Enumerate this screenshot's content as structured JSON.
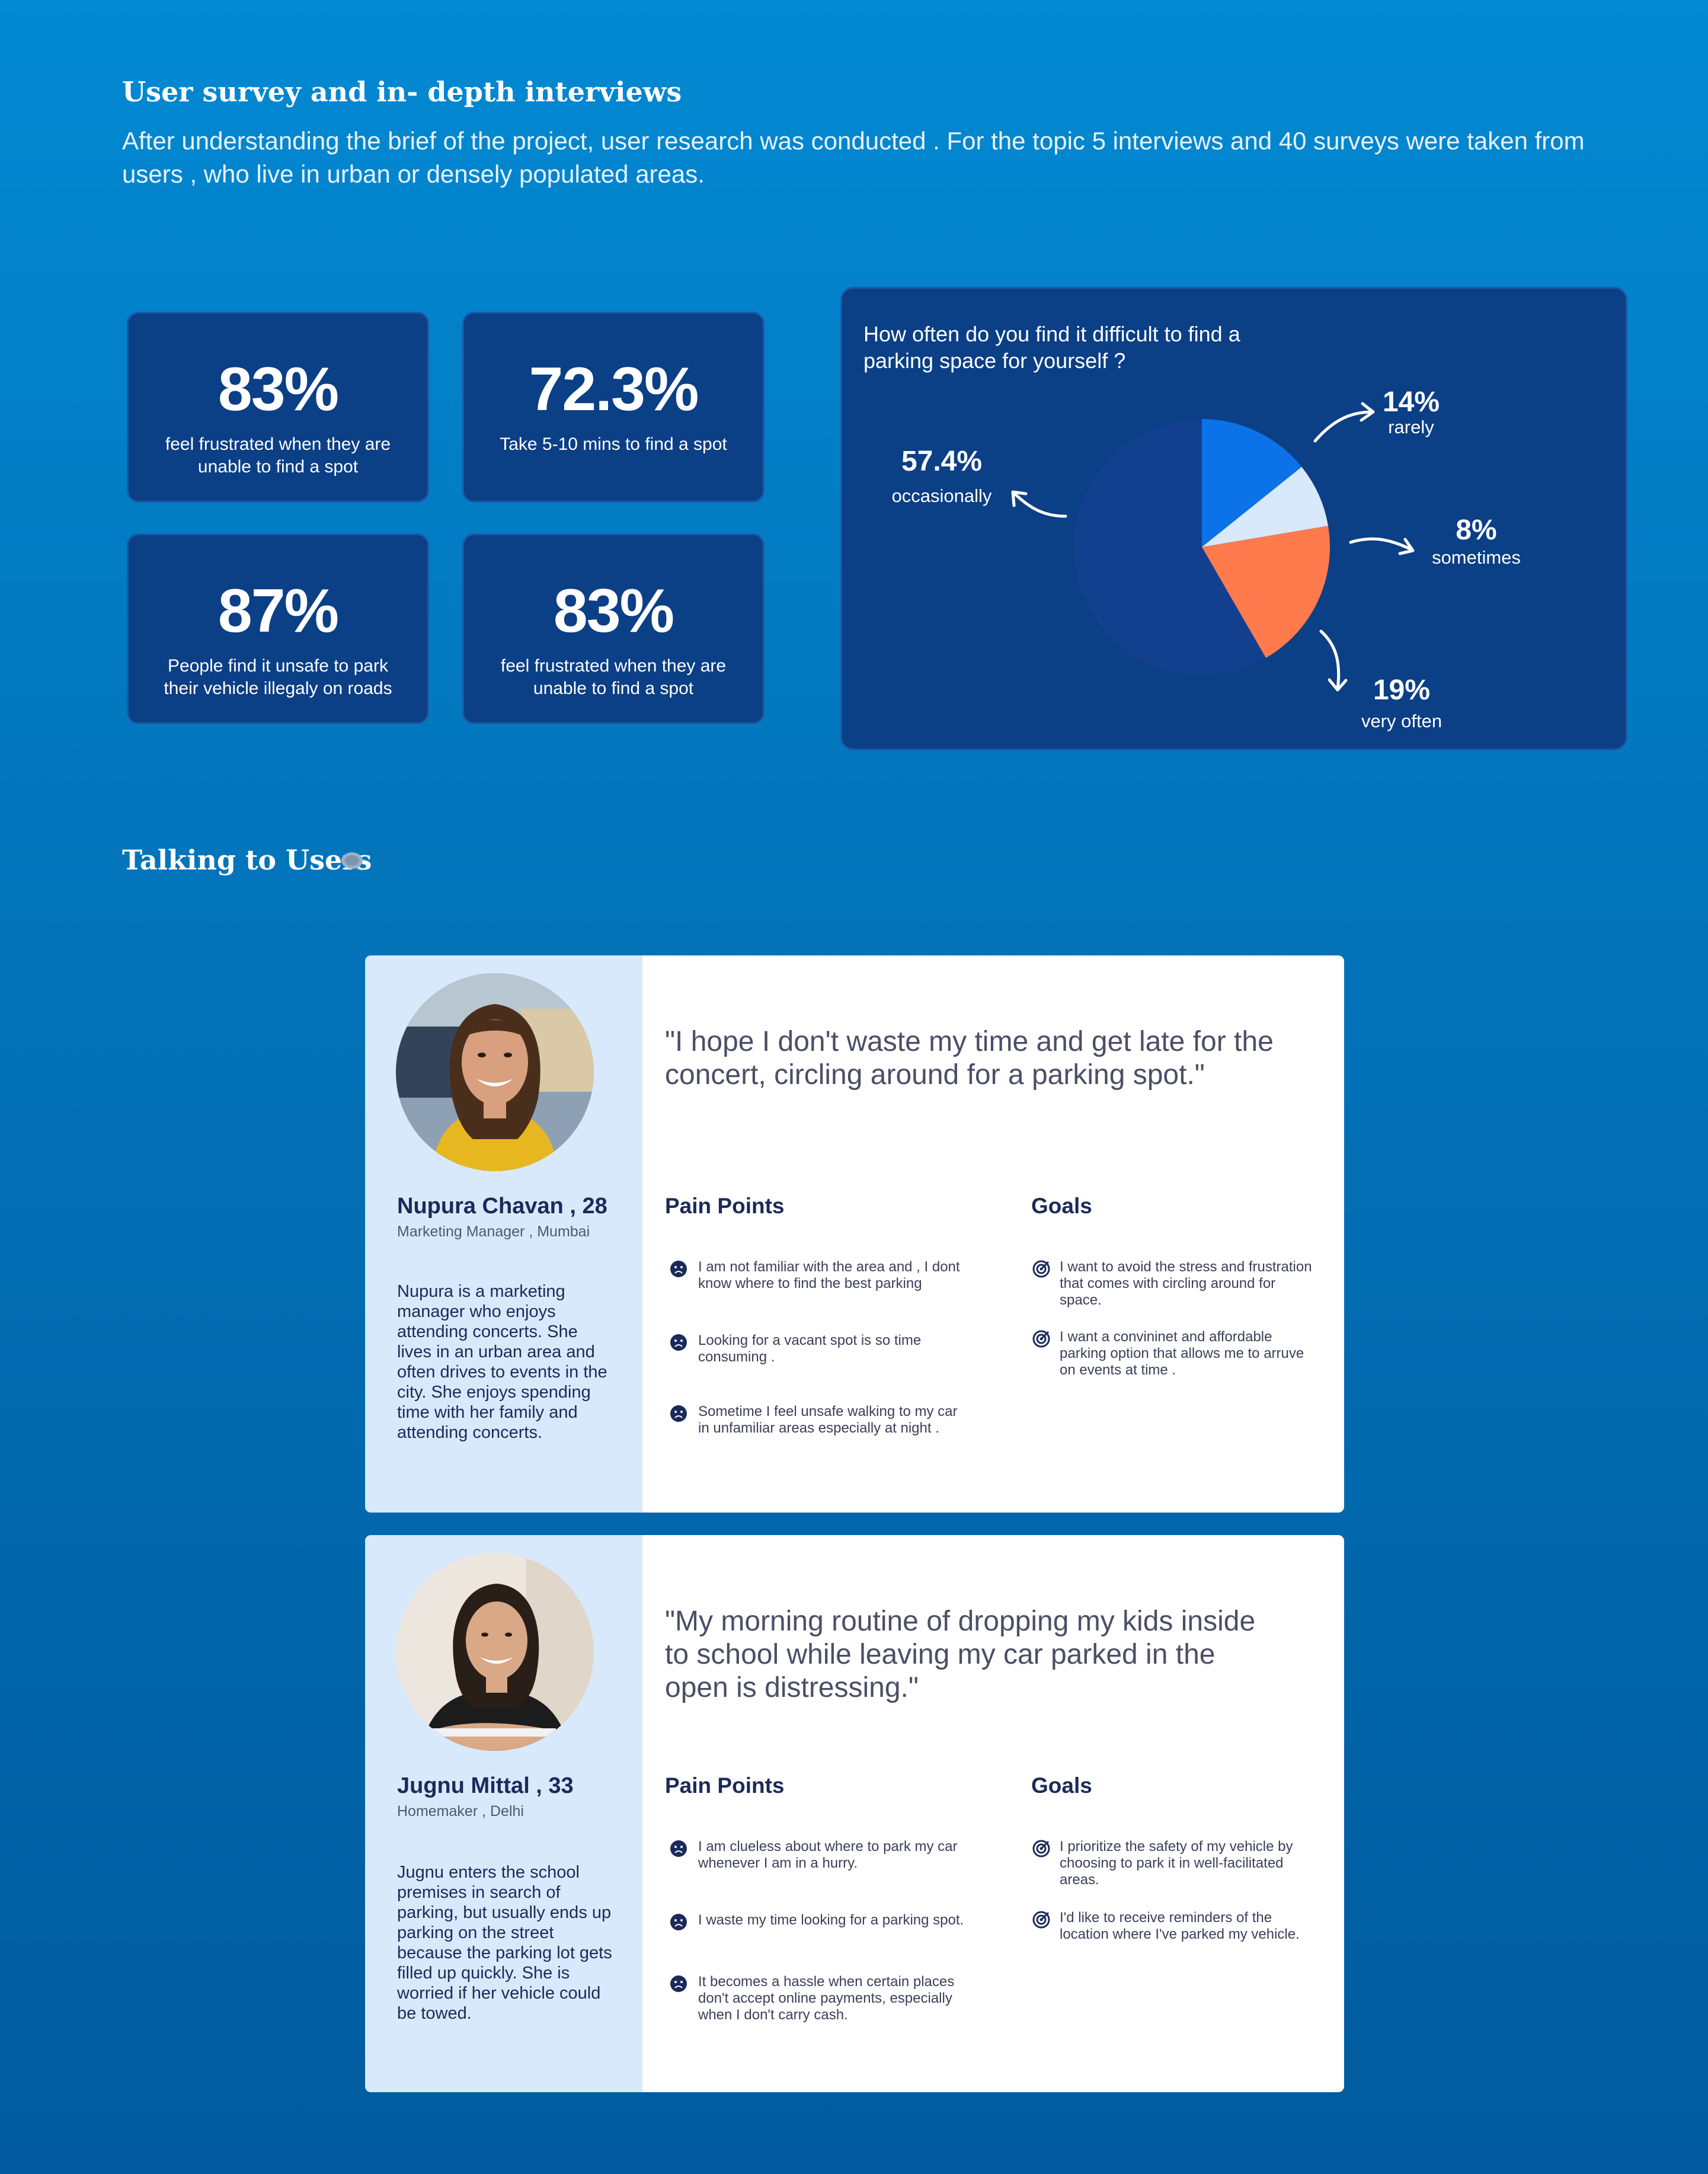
{
  "survey": {
    "title": "User survey and in- depth interviews",
    "intro": "After understanding the brief of the project, user research was conducted . For the topic 5 interviews and 40 surveys were taken from users  , who live in urban or densely populated areas."
  },
  "stats": [
    {
      "value": "83%",
      "label": "feel frustrated when they are unable to find a spot"
    },
    {
      "value": "72.3%",
      "label": "Take 5-10 mins to find a spot"
    },
    {
      "value": "87%",
      "label": "People find it unsafe to park their vehicle illegaly on roads"
    },
    {
      "value": "83%",
      "label": "feel frustrated when they are unable to find a spot"
    }
  ],
  "chart_data": {
    "type": "pie",
    "title": "How often do you find it difficult to find a parking space for yourself ?",
    "slices": [
      {
        "label": "rarely",
        "value": 14,
        "display": "14%",
        "color": "#0b72e8"
      },
      {
        "label": "sometimes",
        "value": 8,
        "display": "8%",
        "color": "#d8e9fb"
      },
      {
        "label": "very often",
        "value": 19,
        "display": "19%",
        "color": "#ff7a4d"
      },
      {
        "label": "occasionally",
        "value": 57.4,
        "display": "57.4%",
        "color": "#12408f"
      }
    ]
  },
  "talking": {
    "title": "Talking to Users"
  },
  "personas": [
    {
      "name": "Nupura Chavan , 28",
      "role": "Marketing Manager , Mumbai",
      "bio": "Nupura is a marketing manager who enjoys attending concerts. She lives in an urban area and often drives to events in the city. She enjoys spending time with her family and attending concerts.",
      "quote": "\"I hope I don't waste my time and get late for the concert, circling around for a parking spot.\"",
      "pain_title": "Pain Points",
      "goals_title": "Goals",
      "pain_points": [
        "I am not familiar with the area and , I dont know where to find the best parking",
        "Looking for a vacant spot is so time consuming .",
        "Sometime I  feel unsafe walking to my car in unfamiliar areas especially at night ."
      ],
      "goals": [
        "I want to avoid the stress and frustration that comes with circling around for space.",
        "I want a convininet and affordable parking option that allows me to arruve on events at time ."
      ]
    },
    {
      "name": "Jugnu Mittal , 33",
      "role": "Homemaker  , Delhi",
      "bio": "Jugnu enters the school premises in search of parking, but usually ends up parking on the street because the parking lot gets filled up quickly. She is worried if her vehicle could be towed.",
      "quote": "\"My morning routine of dropping my kids inside to school while leaving my car parked in the open is distressing.\"",
      "pain_title": "Pain Points",
      "goals_title": "Goals",
      "pain_points": [
        "I am clueless about where to park my car whenever I am in a hurry.",
        "I waste my time looking for a parking spot.",
        "It becomes a hassle when certain places don't accept online payments, especially when I don't carry cash."
      ],
      "goals": [
        "I prioritize the safety of my vehicle by choosing to park it in well-facilitated areas.",
        "I'd like to receive reminders of the location where I've parked my vehicle."
      ]
    }
  ],
  "icons": {
    "pain": "sad-face-icon",
    "goal": "target-icon",
    "chat": "chat-bubble-icon"
  }
}
